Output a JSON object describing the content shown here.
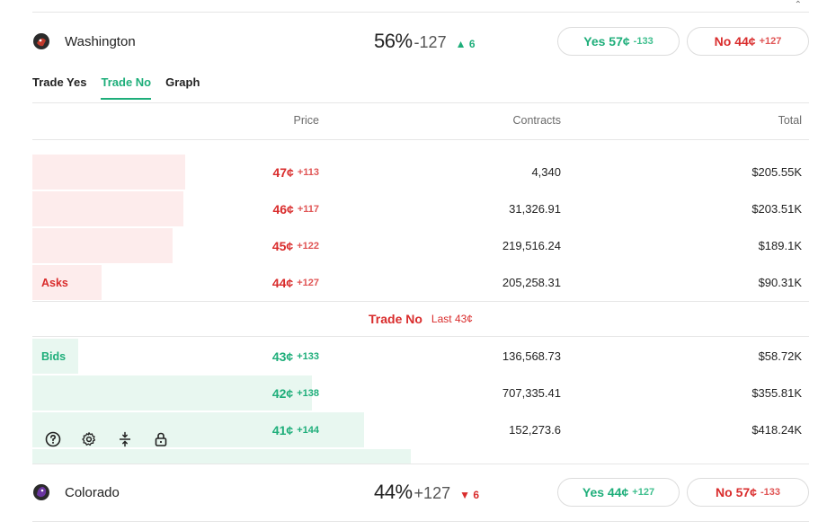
{
  "top_team": {
    "name": "Washington",
    "pct": "56%",
    "odds": "-127",
    "change": "6",
    "change_arrow": "▲",
    "yes_label": "Yes 57¢",
    "yes_odds": "-133",
    "no_label": "No 44¢",
    "no_odds": "+127",
    "logo_color": "#c0392b"
  },
  "tabs": [
    {
      "label": "Trade Yes"
    },
    {
      "label": "Trade No"
    },
    {
      "label": "Graph"
    }
  ],
  "active_tab": "Trade No",
  "columns": {
    "price": "Price",
    "contracts": "Contracts",
    "total": "Total"
  },
  "asks": [
    {
      "price": "47¢",
      "odds": "+113",
      "contracts": "4,340",
      "total": "$205.55K",
      "depth": 0.197
    },
    {
      "price": "46¢",
      "odds": "+117",
      "contracts": "31,326.91",
      "total": "$203.51K",
      "depth": 0.195
    },
    {
      "price": "45¢",
      "odds": "+122",
      "contracts": "219,516.24",
      "total": "$189.1K",
      "depth": 0.181
    },
    {
      "price": "44¢",
      "odds": "+127",
      "contracts": "205,258.31",
      "total": "$90.31K",
      "depth": 0.089
    }
  ],
  "asks_label": "Asks",
  "mid": {
    "label": "Trade No",
    "last": "Last 43¢"
  },
  "bids_label": "Bids",
  "bids": [
    {
      "price": "43¢",
      "odds": "+133",
      "contracts": "136,568.73",
      "total": "$58.72K",
      "depth": 0.059
    },
    {
      "price": "42¢",
      "odds": "+138",
      "contracts": "707,335.41",
      "total": "$355.81K",
      "depth": 0.36
    },
    {
      "price": "41¢",
      "odds": "+144",
      "contracts": "152,273.6",
      "total": "$418.24K",
      "depth": 0.427
    }
  ],
  "bottom_team": {
    "name": "Colorado",
    "pct": "44%",
    "odds": "+127",
    "change": "6",
    "change_arrow": "▼",
    "yes_label": "Yes 44¢",
    "yes_odds": "+127",
    "no_label": "No 57¢",
    "no_odds": "-133",
    "logo_color": "#5b2a86"
  },
  "colors": {
    "green": "#1eae7a",
    "red": "#d92c2c",
    "ask_bar": "#fdecec",
    "bid_bar": "#e8f7f0"
  }
}
